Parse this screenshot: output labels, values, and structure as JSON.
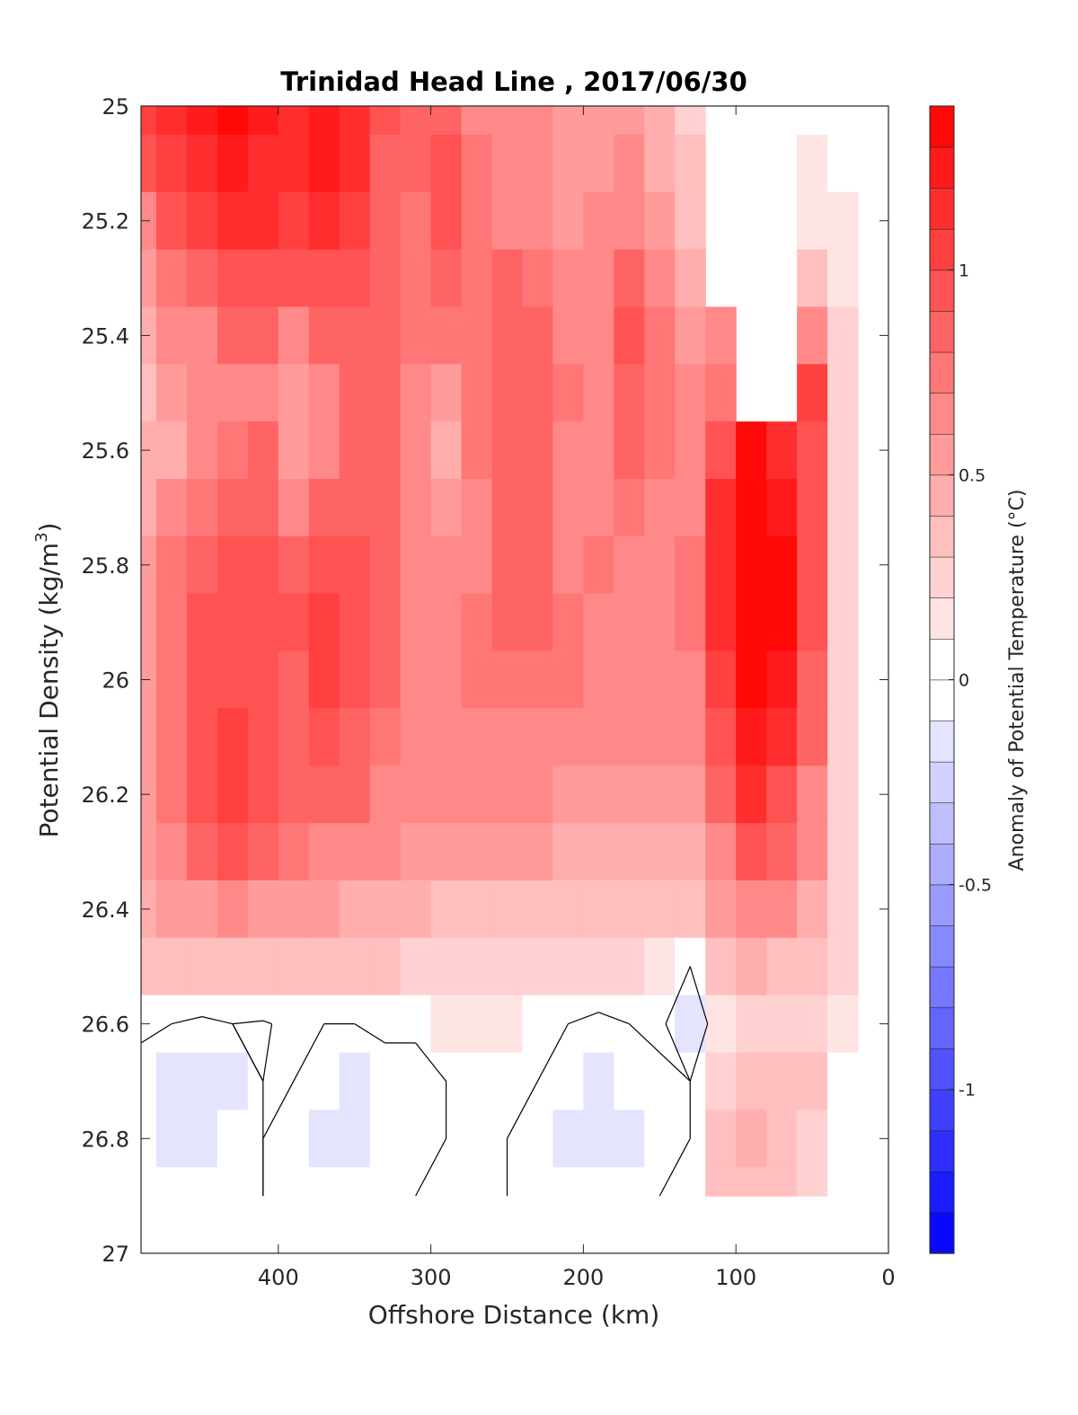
{
  "chart_data": {
    "type": "heatmap",
    "subtype": "filled-contour",
    "title": "Trinidad Head Line , 2017/06/30",
    "xlabel": "Offshore Distance (km)",
    "ylabel_main": "Potential Density (kg/m",
    "ylabel_sup": "3",
    "ylabel_tail": ")",
    "xlim": [
      490,
      0
    ],
    "ylim": [
      25,
      27
    ],
    "y_reversed": true,
    "x_ticks": [
      "400",
      "300",
      "200",
      "100",
      "0"
    ],
    "x_tick_values": [
      400,
      300,
      200,
      100,
      0
    ],
    "y_ticks": [
      "25",
      "25.2",
      "25.4",
      "25.6",
      "25.8",
      "26",
      "26.2",
      "26.4",
      "26.6",
      "26.8",
      "27"
    ],
    "y_tick_values": [
      25,
      25.2,
      25.4,
      25.6,
      25.8,
      26,
      26.2,
      26.4,
      26.6,
      26.8,
      27
    ],
    "grid": false,
    "colormap": "blue-white-red",
    "color_low": "#0000ff",
    "color_zero": "#ffffff",
    "color_high": "#ff0000",
    "contour_color": "#000000",
    "colorbar": {
      "label": "Anomaly of Potential Temperature (°C)",
      "range": [
        -1.4,
        1.4
      ],
      "levels": 28,
      "ticks": [
        "1",
        "0.5",
        "0",
        "-0.5",
        "-1"
      ],
      "tick_values": [
        1,
        0.5,
        0,
        -0.5,
        -1
      ],
      "placement": "right"
    },
    "data_coverage": {
      "x_range_km": [
        490,
        20
      ],
      "max_density": 26.9
    },
    "grid_x_km": [
      490,
      470,
      450,
      430,
      410,
      390,
      370,
      350,
      330,
      310,
      290,
      270,
      250,
      230,
      210,
      190,
      170,
      150,
      130,
      110,
      90,
      70,
      50,
      30
    ],
    "grid_y_density": [
      25.0,
      25.1,
      25.2,
      25.3,
      25.4,
      25.5,
      25.6,
      25.7,
      25.8,
      25.9,
      26.0,
      26.1,
      26.2,
      26.3,
      26.4,
      26.5,
      26.6,
      26.7,
      26.8,
      26.9
    ],
    "anomaly_values": [
      [
        1.0,
        1.1,
        1.2,
        1.3,
        1.2,
        1.15,
        1.2,
        1.1,
        0.9,
        0.8,
        0.85,
        0.7,
        0.6,
        0.6,
        0.5,
        0.55,
        0.5,
        0.4,
        0.25,
        null,
        null,
        null,
        null,
        0.05
      ],
      [
        0.95,
        1.05,
        1.15,
        1.25,
        1.15,
        1.1,
        1.2,
        1.1,
        0.85,
        0.8,
        0.9,
        0.75,
        0.65,
        0.65,
        0.5,
        0.5,
        0.6,
        0.45,
        0.3,
        null,
        null,
        null,
        0.1,
        0.05
      ],
      [
        0.7,
        0.95,
        1.05,
        1.15,
        1.1,
        1.05,
        1.1,
        1.0,
        0.8,
        0.75,
        0.9,
        0.75,
        0.7,
        0.7,
        0.5,
        0.6,
        0.7,
        0.5,
        0.35,
        null,
        null,
        null,
        0.15,
        0.1
      ],
      [
        0.55,
        0.75,
        0.85,
        0.95,
        0.95,
        0.95,
        0.95,
        0.9,
        0.8,
        0.75,
        0.8,
        0.75,
        0.8,
        0.75,
        0.6,
        0.65,
        0.8,
        0.6,
        0.45,
        null,
        null,
        null,
        0.35,
        0.15
      ],
      [
        0.45,
        0.6,
        0.7,
        0.8,
        0.8,
        0.7,
        0.8,
        0.85,
        0.8,
        0.75,
        0.75,
        0.75,
        0.8,
        0.8,
        0.7,
        0.7,
        0.9,
        0.75,
        0.55,
        0.65,
        null,
        null,
        0.7,
        0.2
      ],
      [
        0.35,
        0.5,
        0.6,
        0.7,
        0.7,
        0.55,
        0.7,
        0.85,
        0.8,
        0.7,
        0.5,
        0.75,
        0.8,
        0.8,
        0.75,
        0.7,
        0.85,
        0.75,
        0.6,
        0.75,
        null,
        null,
        1.0,
        0.2
      ],
      [
        0.4,
        0.45,
        0.6,
        0.75,
        0.8,
        0.55,
        0.65,
        0.85,
        0.8,
        0.7,
        0.45,
        0.75,
        0.8,
        0.8,
        0.7,
        0.7,
        0.8,
        0.75,
        0.65,
        0.95,
        1.3,
        1.15,
        0.95,
        0.2
      ],
      [
        0.45,
        0.6,
        0.75,
        0.85,
        0.85,
        0.7,
        0.8,
        0.85,
        0.8,
        0.7,
        0.55,
        0.7,
        0.8,
        0.8,
        0.65,
        0.7,
        0.75,
        0.7,
        0.7,
        1.1,
        1.45,
        1.25,
        0.9,
        0.2
      ],
      [
        0.55,
        0.75,
        0.85,
        0.9,
        0.9,
        0.85,
        0.95,
        0.9,
        0.8,
        0.7,
        0.65,
        0.7,
        0.8,
        0.8,
        0.7,
        0.75,
        0.7,
        0.7,
        0.75,
        1.1,
        1.45,
        1.3,
        0.9,
        0.2
      ],
      [
        0.55,
        0.75,
        0.9,
        0.95,
        0.9,
        0.9,
        1.0,
        0.95,
        0.8,
        0.7,
        0.7,
        0.75,
        0.8,
        0.8,
        0.75,
        0.7,
        0.65,
        0.7,
        0.75,
        1.1,
        1.45,
        1.3,
        0.9,
        0.2
      ],
      [
        0.55,
        0.75,
        0.9,
        0.95,
        0.9,
        0.85,
        1.0,
        0.95,
        0.8,
        0.7,
        0.7,
        0.75,
        0.75,
        0.75,
        0.75,
        0.7,
        0.7,
        0.65,
        0.7,
        1.05,
        1.4,
        1.25,
        0.85,
        0.2
      ],
      [
        0.55,
        0.75,
        0.95,
        1.0,
        0.95,
        0.85,
        0.9,
        0.85,
        0.75,
        0.7,
        0.65,
        0.7,
        0.7,
        0.7,
        0.65,
        0.65,
        0.65,
        0.65,
        0.65,
        0.95,
        1.25,
        1.1,
        0.8,
        0.2
      ],
      [
        0.5,
        0.75,
        0.95,
        1.05,
        0.95,
        0.85,
        0.85,
        0.8,
        0.7,
        0.65,
        0.6,
        0.6,
        0.6,
        0.6,
        0.55,
        0.55,
        0.55,
        0.55,
        0.55,
        0.85,
        1.15,
        0.95,
        0.7,
        0.2
      ],
      [
        0.5,
        0.7,
        0.85,
        0.9,
        0.85,
        0.75,
        0.7,
        0.7,
        0.6,
        0.55,
        0.5,
        0.5,
        0.5,
        0.5,
        0.45,
        0.45,
        0.45,
        0.45,
        0.4,
        0.7,
        0.95,
        0.8,
        0.6,
        0.2
      ],
      [
        0.4,
        0.5,
        0.55,
        0.6,
        0.55,
        0.5,
        0.5,
        0.45,
        0.45,
        0.4,
        0.35,
        0.35,
        0.35,
        0.35,
        0.35,
        0.35,
        0.35,
        0.35,
        0.3,
        0.5,
        0.7,
        0.6,
        0.45,
        0.2
      ],
      [
        0.3,
        0.35,
        0.35,
        0.35,
        0.35,
        0.3,
        0.3,
        0.3,
        0.3,
        0.25,
        0.25,
        0.2,
        0.2,
        0.2,
        0.2,
        0.2,
        0.2,
        0.15,
        0.0,
        0.3,
        0.4,
        0.35,
        0.3,
        0.2
      ],
      [
        0.05,
        0.0,
        -0.05,
        0.0,
        -0.02,
        0.05,
        0.0,
        0.0,
        0.05,
        0.05,
        0.1,
        0.1,
        0.1,
        0.05,
        0.0,
        -0.05,
        0.0,
        0.05,
        -0.2,
        0.15,
        0.2,
        0.25,
        0.2,
        0.1
      ],
      [
        -0.1,
        -0.12,
        -0.15,
        -0.12,
        0.0,
        0.0,
        -0.1,
        -0.12,
        -0.1,
        -0.1,
        0.0,
        0.05,
        0.05,
        0.0,
        -0.1,
        -0.15,
        -0.1,
        -0.05,
        0.0,
        0.2,
        0.3,
        0.35,
        0.3,
        0.05
      ],
      [
        -0.1,
        -0.15,
        -0.2,
        -0.1,
        0.0,
        -0.1,
        -0.15,
        -0.12,
        -0.1,
        -0.05,
        0.0,
        0.02,
        0.0,
        -0.05,
        -0.15,
        -0.18,
        -0.12,
        -0.05,
        0.0,
        0.3,
        0.4,
        0.35,
        0.25,
        0.05
      ],
      [
        -0.05,
        -0.1,
        -0.1,
        -0.05,
        0.0,
        -0.05,
        -0.1,
        -0.1,
        -0.05,
        0.0,
        0.0,
        0.02,
        0.0,
        -0.02,
        -0.1,
        -0.1,
        -0.05,
        0.0,
        0.0,
        0.3,
        0.35,
        0.3,
        0.2,
        0.05
      ]
    ]
  }
}
